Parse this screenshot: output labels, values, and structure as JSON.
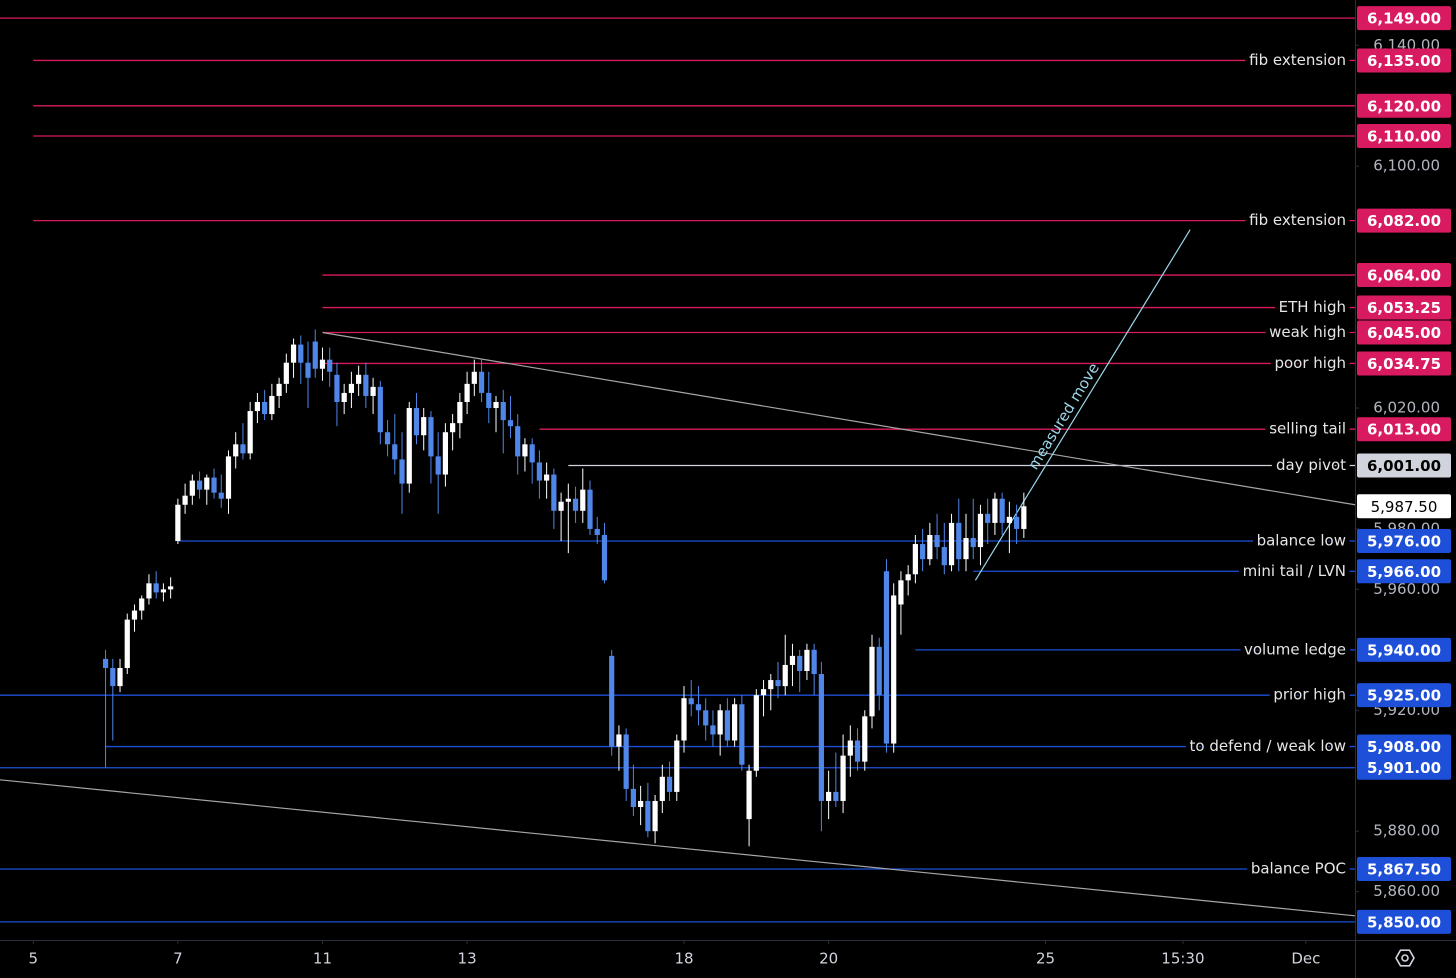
{
  "chart_data": {
    "type": "candlestick",
    "first_bar": 10,
    "up_color": "#ffffff",
    "down_color": "#4f86e8",
    "xlim": [
      -4.6,
      182.8
    ],
    "ylim": [
      5844,
      6155
    ],
    "xticks": [
      {
        "value": 0,
        "label": "5"
      },
      {
        "value": 20,
        "label": "7"
      },
      {
        "value": 40,
        "label": "11"
      },
      {
        "value": 60,
        "label": "13"
      },
      {
        "value": 90,
        "label": "18"
      },
      {
        "value": 110,
        "label": "20"
      },
      {
        "value": 140,
        "label": "25"
      },
      {
        "value": 159,
        "label": "15:30"
      },
      {
        "value": 176,
        "label": "Dec"
      }
    ],
    "yticks": [
      {
        "value": 6140,
        "label": "6,140.00"
      },
      {
        "value": 6100,
        "label": "6,100.00"
      },
      {
        "value": 6020,
        "label": "6,020.00"
      },
      {
        "value": 5980,
        "label": "5,980.00"
      },
      {
        "value": 5960,
        "label": "5,960.00"
      },
      {
        "value": 5920,
        "label": "5,920.00"
      },
      {
        "value": 5880,
        "label": "5,880.00"
      },
      {
        "value": 5860,
        "label": "5,860.00"
      }
    ],
    "candles": [
      [
        5937,
        5940,
        5901,
        5934
      ],
      [
        5934,
        5937,
        5910,
        5928
      ],
      [
        5928,
        5937,
        5926,
        5934
      ],
      [
        5934,
        5952,
        5932,
        5950
      ],
      [
        5950,
        5955,
        5946,
        5953
      ],
      [
        5953,
        5958,
        5950,
        5957
      ],
      [
        5957,
        5965,
        5955,
        5962
      ],
      [
        5962,
        5966,
        5957,
        5959
      ],
      [
        5959,
        5962,
        5956,
        5960
      ],
      [
        5960,
        5964,
        5957,
        5961
      ],
      [
        5976,
        5990,
        5975,
        5988
      ],
      [
        5988,
        5995,
        5985,
        5991
      ],
      [
        5991,
        5998,
        5988,
        5996
      ],
      [
        5996,
        5999,
        5990,
        5993
      ],
      [
        5993,
        5998,
        5988,
        5997
      ],
      [
        5997,
        6000,
        5990,
        5992
      ],
      [
        5992,
        5998,
        5987,
        5990
      ],
      [
        5990,
        6006,
        5985,
        6004
      ],
      [
        6004,
        6012,
        6000,
        6008
      ],
      [
        6008,
        6015,
        6003,
        6005
      ],
      [
        6005,
        6022,
        6003,
        6019
      ],
      [
        6019,
        6025,
        6015,
        6022
      ],
      [
        6022,
        6026,
        6016,
        6018
      ],
      [
        6018,
        6028,
        6016,
        6024
      ],
      [
        6024,
        6030,
        6020,
        6028
      ],
      [
        6028,
        6038,
        6025,
        6035
      ],
      [
        6035,
        6043,
        6030,
        6041
      ],
      [
        6041,
        6044,
        6028,
        6035
      ],
      [
        6035,
        6042,
        6020,
        6030
      ],
      [
        6042,
        6046,
        6030,
        6033
      ],
      [
        6033,
        6040,
        6029,
        6036
      ],
      [
        6036,
        6040,
        6027,
        6032
      ],
      [
        6031,
        6035,
        6014,
        6022
      ],
      [
        6022,
        6028,
        6018,
        6025
      ],
      [
        6025,
        6032,
        6020,
        6028
      ],
      [
        6028,
        6034,
        6024,
        6031
      ],
      [
        6031,
        6035,
        6020,
        6024
      ],
      [
        6024,
        6030,
        6018,
        6027
      ],
      [
        6027,
        6029,
        6008,
        6012
      ],
      [
        6012,
        6016,
        6004,
        6008
      ],
      [
        6008,
        6018,
        5998,
        6003
      ],
      [
        6003,
        6012,
        5985,
        5995
      ],
      [
        5995,
        6022,
        5992,
        6020
      ],
      [
        6020,
        6025,
        6008,
        6011
      ],
      [
        6011,
        6020,
        6006,
        6017
      ],
      [
        6017,
        6019,
        5995,
        6004
      ],
      [
        6004,
        6012,
        5985,
        5998
      ],
      [
        5998,
        6015,
        5994,
        6012
      ],
      [
        6012,
        6018,
        6006,
        6015
      ],
      [
        6015,
        6025,
        6010,
        6022
      ],
      [
        6022,
        6032,
        6018,
        6028
      ],
      [
        6028,
        6036,
        6024,
        6032
      ],
      [
        6032,
        6036,
        6022,
        6025
      ],
      [
        6025,
        6032,
        6015,
        6020
      ],
      [
        6020,
        6024,
        6012,
        6022
      ],
      [
        6022,
        6026,
        6005,
        6016
      ],
      [
        6016,
        6024,
        6010,
        6014
      ],
      [
        6014,
        6018,
        5998,
        6004
      ],
      [
        6004,
        6010,
        5999,
        6008
      ],
      [
        6008,
        6010,
        5995,
        6002
      ],
      [
        6002,
        6006,
        5990,
        5996
      ],
      [
        5996,
        6002,
        5990,
        5998
      ],
      [
        5998,
        6000,
        5980,
        5986
      ],
      [
        5986,
        5992,
        5976,
        5989
      ],
      [
        5989,
        5995,
        5972,
        5990
      ],
      [
        5990,
        5994,
        5982,
        5986
      ],
      [
        5986,
        6000,
        5982,
        5993
      ],
      [
        5993,
        5996,
        5978,
        5980
      ],
      [
        5980,
        5984,
        5975,
        5978
      ],
      [
        5978,
        5982,
        5962,
        5963
      ],
      [
        5938,
        5940,
        5905,
        5908
      ],
      [
        5908,
        5915,
        5900,
        5912
      ],
      [
        5912,
        5914,
        5890,
        5894
      ],
      [
        5894,
        5902,
        5885,
        5888
      ],
      [
        5888,
        5895,
        5882,
        5890
      ],
      [
        5890,
        5896,
        5878,
        5880
      ],
      [
        5880,
        5892,
        5876,
        5890
      ],
      [
        5890,
        5902,
        5886,
        5898
      ],
      [
        5898,
        5903,
        5890,
        5893
      ],
      [
        5893,
        5912,
        5890,
        5910
      ],
      [
        5910,
        5928,
        5906,
        5924
      ],
      [
        5924,
        5930,
        5918,
        5922
      ],
      [
        5922,
        5928,
        5915,
        5920
      ],
      [
        5920,
        5924,
        5910,
        5915
      ],
      [
        5915,
        5920,
        5908,
        5912
      ],
      [
        5912,
        5922,
        5905,
        5920
      ],
      [
        5920,
        5924,
        5908,
        5910
      ],
      [
        5910,
        5924,
        5908,
        5922
      ],
      [
        5922,
        5925,
        5900,
        5902
      ],
      [
        5884,
        5902,
        5875,
        5900
      ],
      [
        5900,
        5927,
        5898,
        5925
      ],
      [
        5925,
        5930,
        5918,
        5927
      ],
      [
        5927,
        5932,
        5920,
        5930
      ],
      [
        5930,
        5936,
        5924,
        5928
      ],
      [
        5928,
        5945,
        5925,
        5935
      ],
      [
        5935,
        5942,
        5928,
        5938
      ],
      [
        5938,
        5940,
        5926,
        5933
      ],
      [
        5933,
        5942,
        5930,
        5940
      ],
      [
        5940,
        5942,
        5925,
        5932
      ],
      [
        5932,
        5936,
        5880,
        5890
      ],
      [
        5890,
        5900,
        5884,
        5893
      ],
      [
        5893,
        5906,
        5888,
        5890
      ],
      [
        5890,
        5912,
        5886,
        5905
      ],
      [
        5905,
        5915,
        5898,
        5910
      ],
      [
        5910,
        5914,
        5900,
        5903
      ],
      [
        5903,
        5920,
        5900,
        5918
      ],
      [
        5918,
        5945,
        5914,
        5941
      ],
      [
        5941,
        5944,
        5920,
        5925
      ],
      [
        5966,
        5970,
        5906,
        5909
      ],
      [
        5909,
        5962,
        5906,
        5958
      ],
      [
        5955,
        5966,
        5945,
        5963
      ],
      [
        5963,
        5968,
        5958,
        5965
      ],
      [
        5965,
        5978,
        5962,
        5975
      ],
      [
        5975,
        5980,
        5966,
        5970
      ],
      [
        5970,
        5982,
        5968,
        5978
      ],
      [
        5978,
        5985,
        5970,
        5974
      ],
      [
        5974,
        5982,
        5965,
        5968
      ],
      [
        5968,
        5985,
        5966,
        5982
      ],
      [
        5982,
        5990,
        5966,
        5970
      ],
      [
        5970,
        5985,
        5966,
        5977
      ],
      [
        5977,
        5990,
        5970,
        5974
      ],
      [
        5974,
        5988,
        5968,
        5985
      ],
      [
        5985,
        5990,
        5975,
        5982
      ],
      [
        5982,
        5992,
        5978,
        5990
      ],
      [
        5990,
        5992,
        5978,
        5982
      ],
      [
        5982,
        5989,
        5972,
        5984
      ],
      [
        5984,
        5988,
        5975,
        5980
      ],
      [
        5980,
        5992,
        5977,
        5987.5
      ]
    ],
    "levels": [
      {
        "value": 6149,
        "value_label": "6,149.00",
        "color": "#d81b60",
        "from": -4.6
      },
      {
        "name": "fib extension",
        "value": 6135,
        "value_label": "6,135.00",
        "color": "#d81b60",
        "from": 0
      },
      {
        "value": 6120,
        "value_label": "6,120.00",
        "color": "#d81b60",
        "from": 0
      },
      {
        "value": 6110,
        "value_label": "6,110.00",
        "color": "#d81b60",
        "from": 0
      },
      {
        "name": "fib extension",
        "value": 6082,
        "value_label": "6,082.00",
        "color": "#d81b60",
        "from": 0
      },
      {
        "value": 6064,
        "value_label": "6,064.00",
        "color": "#d81b60",
        "from": 40
      },
      {
        "name": "ETH high",
        "value": 6053.25,
        "value_label": "6,053.25",
        "color": "#d81b60",
        "from": 40
      },
      {
        "name": "weak high",
        "value": 6045,
        "value_label": "6,045.00",
        "color": "#d81b60",
        "from": 40
      },
      {
        "name": "poor high",
        "value": 6034.75,
        "value_label": "6,034.75",
        "color": "#d81b60",
        "from": 40
      },
      {
        "name": "selling tail",
        "value": 6013,
        "value_label": "6,013.00",
        "color": "#d81b60",
        "from": 70
      },
      {
        "name": "day pivot",
        "value": 6001,
        "value_label": "6,001.00",
        "color": "#d1d4dc",
        "from": 74
      },
      {
        "name": "balance low",
        "value": 5976,
        "value_label": "5,976.00",
        "color": "#1e4fd8",
        "from": 20
      },
      {
        "name": "mini tail / LVN",
        "value": 5966,
        "value_label": "5,966.00",
        "color": "#1e4fd8",
        "from": 130
      },
      {
        "name": "volume ledge",
        "value": 5940,
        "value_label": "5,940.00",
        "color": "#1e4fd8",
        "from": 122
      },
      {
        "name": "prior high",
        "value": 5925,
        "value_label": "5,925.00",
        "color": "#1e4fd8",
        "from": -4.6
      },
      {
        "name": "to defend / weak low",
        "value": 5908,
        "value_label": "5,908.00",
        "color": "#1e4fd8",
        "from": 10
      },
      {
        "value": 5901,
        "value_label": "5,901.00",
        "color": "#1e4fd8",
        "from": -4.6
      },
      {
        "name": "balance POC",
        "value": 5867.5,
        "value_label": "5,867.50",
        "color": "#1e4fd8",
        "from": -4.6
      },
      {
        "value": 5850,
        "value_label": "5,850.00",
        "color": "#1e4fd8",
        "from": -4.6
      }
    ],
    "last": {
      "value": 5987.5,
      "label": "5,987.50"
    },
    "trendlines": [
      {
        "points": [
          [
            40,
            6045
          ],
          [
            182.8,
            5988
          ]
        ],
        "color": "#a6a6a6"
      },
      {
        "points": [
          [
            -4.6,
            5897
          ],
          [
            182.8,
            5852
          ]
        ],
        "color": "#a6a6a6"
      },
      {
        "name": "measured move",
        "points": [
          [
            130.3,
            5963
          ],
          [
            160,
            6079
          ]
        ],
        "color": "#9ad7e8"
      }
    ]
  }
}
